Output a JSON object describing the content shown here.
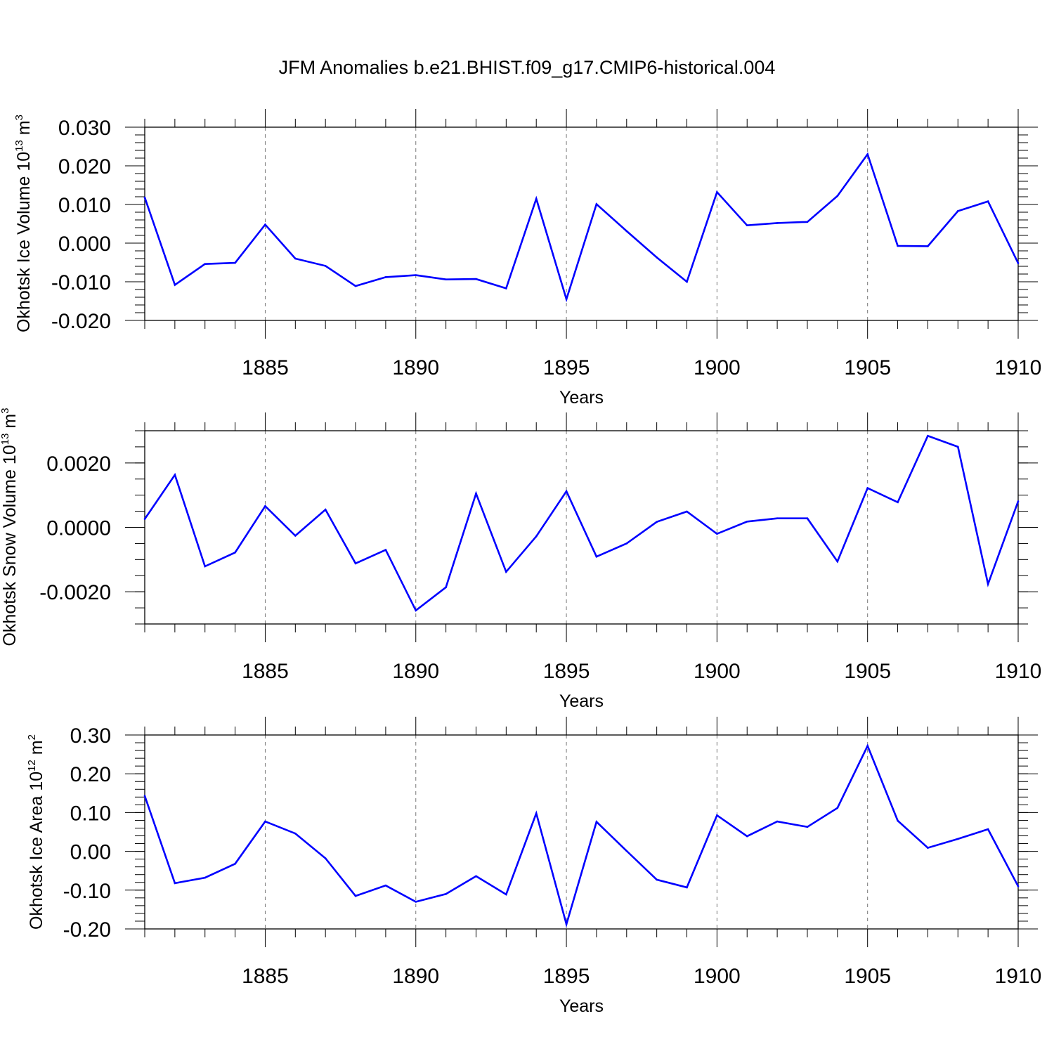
{
  "chart_data": [
    {
      "type": "line",
      "title": "JFM Anomalies b.e21.BHIST.f09_g17.CMIP6-historical.004",
      "ylabel": {
        "main": "Okhotsk Ice Volume 10",
        "exp": "13",
        "unit": " m",
        "unit_exp": "3"
      },
      "xlabel": "Years",
      "xlim": [
        1881,
        1910
      ],
      "ylim": [
        -0.02,
        0.03
      ],
      "x_ticks": [
        1885,
        1890,
        1895,
        1900,
        1905,
        1910
      ],
      "y_ticks": [
        -0.02,
        -0.01,
        0.0,
        0.01,
        0.02,
        0.03
      ],
      "y_tick_labels": [
        "-0.020",
        "-0.010",
        "0.000",
        "0.010",
        "0.020",
        "0.030"
      ],
      "y_minor": 0.002,
      "color": "#0000ff",
      "x": [
        1881,
        1882,
        1883,
        1884,
        1885,
        1886,
        1887,
        1888,
        1889,
        1890,
        1891,
        1892,
        1893,
        1894,
        1895,
        1896,
        1897,
        1898,
        1899,
        1900,
        1901,
        1902,
        1903,
        1904,
        1905,
        1906,
        1907,
        1908,
        1909,
        1910
      ],
      "values": [
        0.0118,
        -0.0108,
        -0.0054,
        -0.0051,
        0.0048,
        -0.004,
        -0.0059,
        -0.0111,
        -0.0088,
        -0.0083,
        -0.0094,
        -0.0093,
        -0.0117,
        0.0115,
        -0.0145,
        0.0101,
        0.0031,
        -0.0037,
        -0.01,
        0.0132,
        0.0046,
        0.0052,
        0.0055,
        0.0122,
        0.023,
        -0.0007,
        -0.0008,
        0.0083,
        0.0108,
        -0.0052
      ]
    },
    {
      "type": "line",
      "title": "",
      "ylabel": {
        "main": "Okhotsk Snow Volume 10",
        "exp": "13",
        "unit": " m",
        "unit_exp": "3"
      },
      "xlabel": "Years",
      "xlim": [
        1881,
        1910
      ],
      "ylim": [
        -0.003,
        0.003
      ],
      "x_ticks": [
        1885,
        1890,
        1895,
        1900,
        1905,
        1910
      ],
      "y_ticks": [
        -0.002,
        0.0,
        0.002
      ],
      "y_tick_labels": [
        "-0.0020",
        "0.0000",
        "0.0020"
      ],
      "y_minor": 0.0005,
      "color": "#0000ff",
      "x": [
        1881,
        1882,
        1883,
        1884,
        1885,
        1886,
        1887,
        1888,
        1889,
        1890,
        1891,
        1892,
        1893,
        1894,
        1895,
        1896,
        1897,
        1898,
        1899,
        1900,
        1901,
        1902,
        1903,
        1904,
        1905,
        1906,
        1907,
        1908,
        1909,
        1910
      ],
      "values": [
        0.00026,
        0.00163,
        -0.00121,
        -0.00078,
        0.00066,
        -0.00026,
        0.00055,
        -0.00112,
        -0.0007,
        -0.00258,
        -0.00186,
        0.00105,
        -0.00138,
        -0.00028,
        0.00112,
        -0.00091,
        -0.0005,
        0.00017,
        0.00049,
        -0.0002,
        0.00018,
        0.00028,
        0.00028,
        -0.00106,
        0.00122,
        0.00078,
        0.00284,
        0.0025,
        -0.00176,
        0.00081
      ]
    },
    {
      "type": "line",
      "title": "",
      "ylabel": {
        "main": "Okhotsk Ice Area 10",
        "exp": "12",
        "unit": " m",
        "unit_exp": "2"
      },
      "xlabel": "Years",
      "xlim": [
        1881,
        1910
      ],
      "ylim": [
        -0.2,
        0.3
      ],
      "x_ticks": [
        1885,
        1890,
        1895,
        1900,
        1905,
        1910
      ],
      "y_ticks": [
        -0.2,
        -0.1,
        0.0,
        0.1,
        0.2,
        0.3
      ],
      "y_tick_labels": [
        "-0.20",
        "-0.10",
        "0.00",
        "0.10",
        "0.20",
        "0.30"
      ],
      "y_minor": 0.02,
      "color": "#0000ff",
      "x": [
        1881,
        1882,
        1883,
        1884,
        1885,
        1886,
        1887,
        1888,
        1889,
        1890,
        1891,
        1892,
        1893,
        1894,
        1895,
        1896,
        1897,
        1898,
        1899,
        1900,
        1901,
        1902,
        1903,
        1904,
        1905,
        1906,
        1907,
        1908,
        1909,
        1910
      ],
      "values": [
        0.143,
        -0.082,
        -0.068,
        -0.032,
        0.077,
        0.046,
        -0.018,
        -0.115,
        -0.088,
        -0.13,
        -0.11,
        -0.064,
        -0.111,
        0.098,
        -0.188,
        0.076,
        0.001,
        -0.073,
        -0.093,
        0.093,
        0.039,
        0.077,
        0.063,
        0.112,
        0.272,
        0.079,
        0.009,
        0.032,
        0.057,
        -0.09
      ]
    }
  ]
}
